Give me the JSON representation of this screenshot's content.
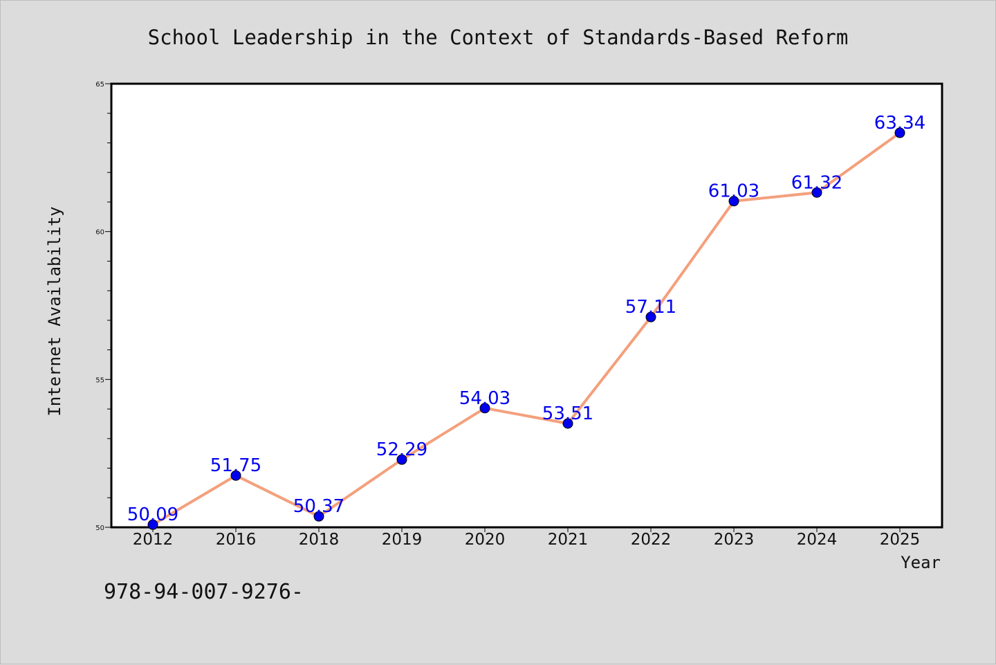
{
  "chart_data": {
    "type": "line",
    "title": "School Leadership in the Context of Standards-Based Reform",
    "xlabel": "Year",
    "ylabel": "Internet Availability",
    "categories": [
      "2012",
      "2016",
      "2018",
      "2019",
      "2020",
      "2021",
      "2022",
      "2023",
      "2024",
      "2025"
    ],
    "values": [
      50.09,
      51.75,
      50.37,
      52.29,
      54.03,
      53.51,
      57.11,
      61.03,
      61.32,
      63.34
    ],
    "data_labels": [
      "50.09",
      "51.75",
      "50.37",
      "52.29",
      "54.03",
      "53.51",
      "57.11",
      "61.03",
      "61.32",
      "63.34"
    ],
    "ylim": [
      50,
      65
    ],
    "yticks": [
      50,
      55,
      60,
      65
    ],
    "grid": false,
    "legend": "none",
    "colors": {
      "line": "#f4a07c",
      "marker": "#0000ee",
      "data_label": "#0000ee",
      "background": "#dcdcdc",
      "plot_background": "#ffffff"
    }
  },
  "footer_text": "978-94-007-9276-"
}
